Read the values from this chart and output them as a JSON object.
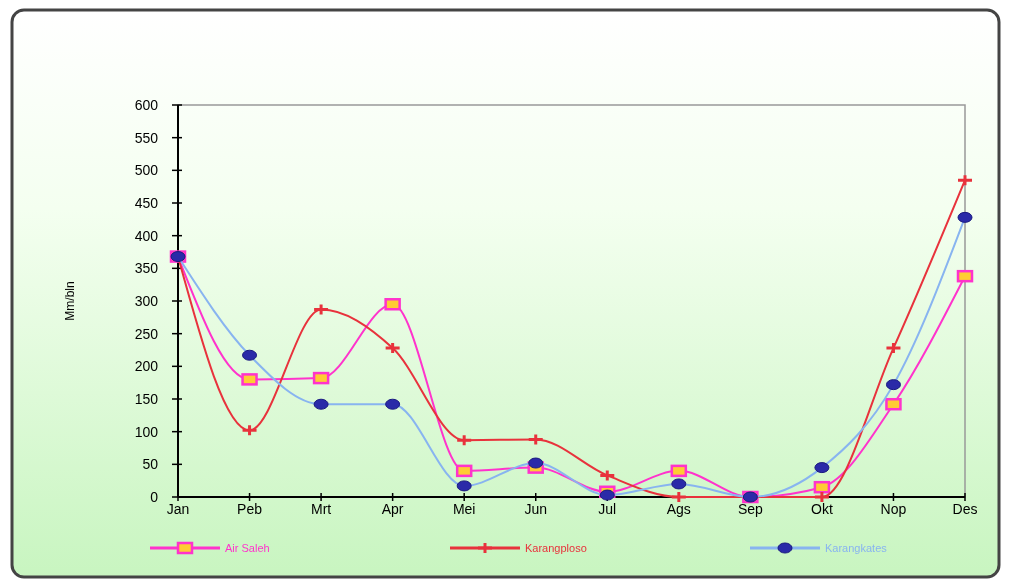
{
  "chart_data": {
    "type": "line",
    "ylabel": "Mm/bln",
    "categories": [
      "Jan",
      "Peb",
      "Mrt",
      "Apr",
      "Mei",
      "Jun",
      "Jul",
      "Ags",
      "Sep",
      "Okt",
      "Nop",
      "Des"
    ],
    "series": [
      {
        "name": "Air Saleh",
        "color": "#ff33cc",
        "marker": "square",
        "values": [
          368,
          180,
          182,
          295,
          40,
          45,
          8,
          40,
          0,
          15,
          142,
          338
        ]
      },
      {
        "name": "Karangploso",
        "color": "#e8323c",
        "marker": "cross",
        "values": [
          368,
          102,
          287,
          228,
          87,
          88,
          33,
          0,
          0,
          0,
          228,
          485
        ]
      },
      {
        "name": "Karangkates",
        "color": "#88b4f0",
        "marker": "circle",
        "values": [
          368,
          217,
          142,
          142,
          17,
          52,
          3,
          20,
          0,
          45,
          172,
          428
        ]
      }
    ],
    "ylim": [
      0,
      600
    ],
    "yticks": [
      0,
      50,
      100,
      150,
      200,
      250,
      300,
      350,
      400,
      450,
      500,
      550,
      600
    ],
    "grid": false,
    "legend": "bottom"
  }
}
